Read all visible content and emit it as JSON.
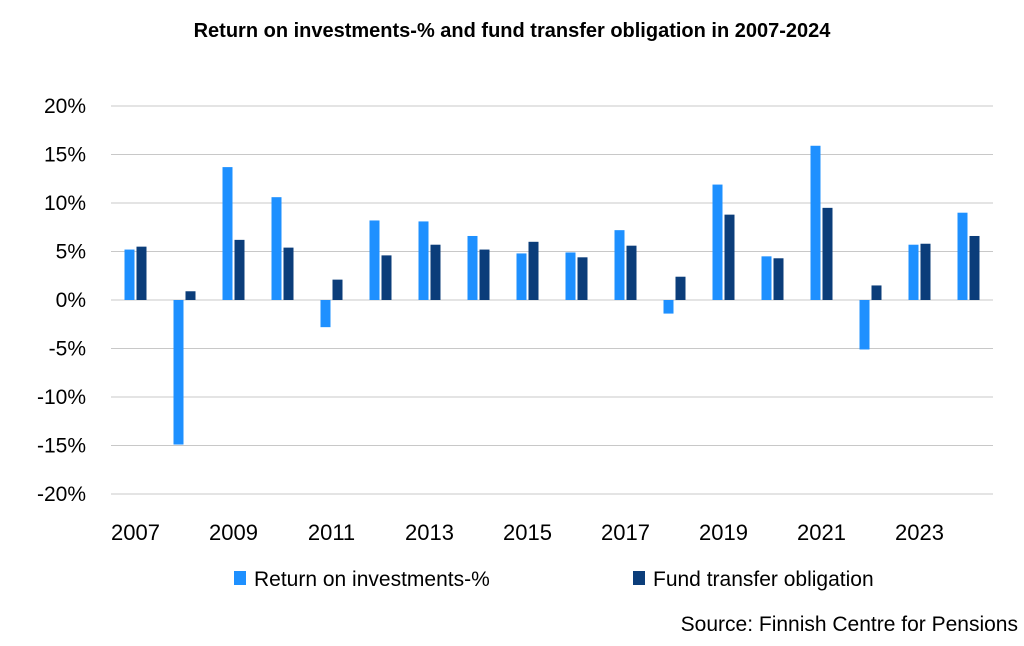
{
  "chart_data": {
    "type": "bar",
    "title": "Return on investments-% and fund transfer obligation in 2007-2024",
    "categories": [
      "2007",
      "2008",
      "2009",
      "2010",
      "2011",
      "2012",
      "2013",
      "2014",
      "2015",
      "2016",
      "2017",
      "2018",
      "2019",
      "2020",
      "2021",
      "2022",
      "2023",
      "2024"
    ],
    "x_tick_labels": [
      "2007",
      "2009",
      "2011",
      "2013",
      "2015",
      "2017",
      "2019",
      "2021",
      "2023"
    ],
    "y_tick_labels": [
      "20%",
      "15%",
      "10%",
      "5%",
      "0%",
      "-5%",
      "-10%",
      "-15%",
      "-20%"
    ],
    "y_ticks": [
      20,
      15,
      10,
      5,
      0,
      -5,
      -10,
      -15,
      -20
    ],
    "ylim": [
      -20,
      20
    ],
    "grid": true,
    "legend_position": "bottom",
    "series": [
      {
        "name": "Return on investments-%",
        "color": "#1e90ff",
        "values": [
          5.2,
          -14.9,
          13.7,
          10.6,
          -2.8,
          8.2,
          8.1,
          6.6,
          4.8,
          4.9,
          7.2,
          -1.4,
          11.9,
          4.5,
          15.9,
          -5.1,
          5.7,
          9.0
        ]
      },
      {
        "name": "Fund transfer obligation",
        "color": "#0b3d7a",
        "values": [
          5.5,
          0.9,
          6.2,
          5.4,
          2.1,
          4.6,
          5.7,
          5.2,
          6.0,
          4.4,
          5.6,
          2.4,
          8.8,
          4.3,
          9.5,
          1.5,
          5.8,
          6.6
        ]
      }
    ],
    "source": "Source: Finnish Centre for Pensions"
  }
}
